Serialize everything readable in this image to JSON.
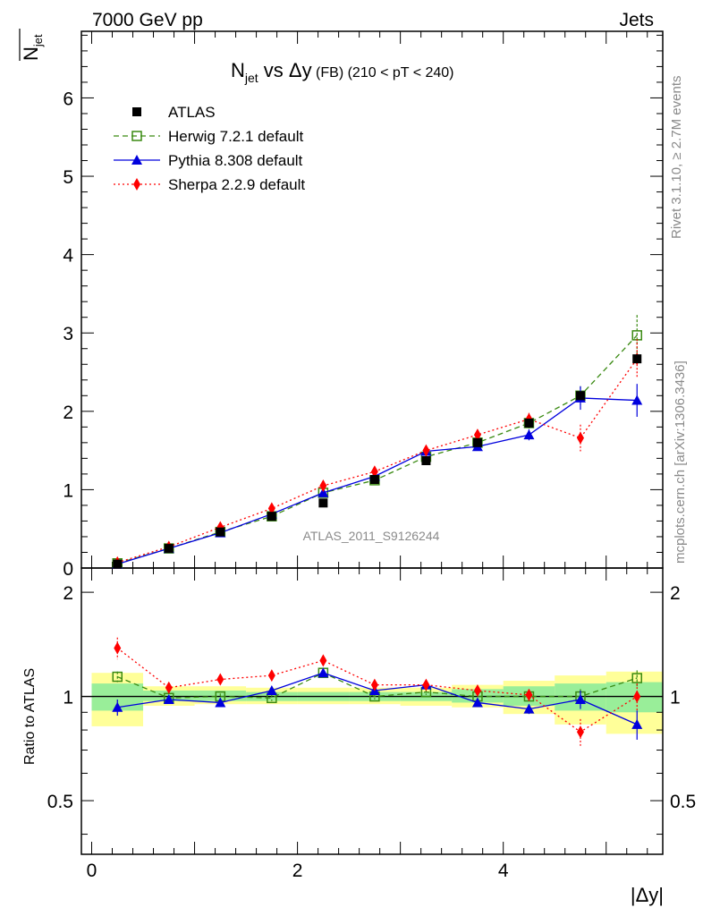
{
  "header": {
    "left": "7000 GeV pp",
    "right": "Jets",
    "side_top": "Rivet 3.1.10, ≥ 2.7M events",
    "side_bottom": "mcplots.cern.ch [arXiv:1306.3436]",
    "watermark": "ATLAS_2011_S9126244"
  },
  "chart_data": {
    "type": "line",
    "title_main": "N",
    "title_sub": "jet",
    "title_vs": " vs Δy",
    "title_fb": " (FB)",
    "title_range": " (210 < pT < 240)",
    "ylabel_main": "N",
    "ylabel_sub": "jet",
    "ratio_ylabel": "Ratio to ATLAS",
    "xlabel": "|Δy|",
    "x": [
      0.25,
      0.75,
      1.25,
      1.75,
      2.25,
      2.75,
      3.25,
      3.75,
      4.25,
      4.75,
      5.3
    ],
    "xlim": [
      -0.1,
      5.55
    ],
    "ylim": [
      0,
      6.85
    ],
    "ratio_ylim": [
      0.35,
      2.35
    ],
    "x_ticks": [
      "0",
      "2",
      "4"
    ],
    "y_ticks": [
      "0",
      "1",
      "2",
      "3",
      "4",
      "5",
      "6"
    ],
    "ratio_ticks": [
      "0.5",
      "1",
      "2"
    ],
    "bands": {
      "x_edges": [
        0,
        0.5,
        1,
        1.5,
        2,
        2.5,
        3,
        3.5,
        4,
        4.5,
        5,
        5.55
      ],
      "yellow_lo": [
        0.82,
        0.94,
        0.95,
        0.95,
        0.95,
        0.95,
        0.94,
        0.93,
        0.89,
        0.83,
        0.78
      ],
      "yellow_hi": [
        1.17,
        1.07,
        1.07,
        1.06,
        1.06,
        1.06,
        1.06,
        1.08,
        1.11,
        1.15,
        1.18
      ],
      "green_lo": [
        0.91,
        0.97,
        0.97,
        0.97,
        0.97,
        0.97,
        0.97,
        0.96,
        0.94,
        0.91,
        0.9
      ],
      "green_hi": [
        1.09,
        1.04,
        1.04,
        1.03,
        1.03,
        1.03,
        1.03,
        1.05,
        1.07,
        1.09,
        1.1
      ]
    },
    "series": [
      {
        "name": "ATLAS",
        "color": "#000000",
        "marker": "square",
        "values": [
          0.05,
          0.25,
          0.46,
          0.66,
          0.83,
          1.13,
          1.37,
          1.6,
          1.85,
          2.2,
          2.67
        ],
        "ratio": [
          1,
          1,
          1,
          1,
          1,
          1,
          1,
          1,
          1,
          1,
          1
        ]
      },
      {
        "name": "Herwig 7.2.1 default",
        "color": "#3a8a12",
        "marker": "open-square",
        "dash": "6,4",
        "values": [
          0.06,
          0.25,
          0.46,
          0.66,
          0.96,
          1.12,
          1.42,
          1.6,
          1.85,
          2.2,
          2.97
        ],
        "ratio": [
          1.14,
          0.99,
          1.0,
          0.99,
          1.17,
          1.0,
          1.03,
          1.0,
          1.0,
          1.0,
          1.13
        ],
        "err": [
          0.01,
          0.01,
          0.01,
          0.02,
          0.02,
          0.03,
          0.03,
          0.05,
          0.07,
          0.12,
          0.26
        ],
        "ratio_err": [
          0.04,
          0.02,
          0.02,
          0.02,
          0.02,
          0.02,
          0.02,
          0.02,
          0.03,
          0.05,
          0.06
        ]
      },
      {
        "name": "Pythia 8.308 default",
        "color": "#0000dd",
        "marker": "triangle",
        "values": [
          0.05,
          0.25,
          0.45,
          0.69,
          0.96,
          1.17,
          1.49,
          1.55,
          1.7,
          2.17,
          2.14
        ],
        "ratio": [
          0.93,
          0.98,
          0.96,
          1.04,
          1.17,
          1.04,
          1.08,
          0.96,
          0.92,
          0.98,
          0.83
        ],
        "err": [
          0.01,
          0.01,
          0.01,
          0.02,
          0.02,
          0.03,
          0.04,
          0.05,
          0.07,
          0.15,
          0.21
        ],
        "ratio_err": [
          0.05,
          0.02,
          0.02,
          0.02,
          0.02,
          0.02,
          0.02,
          0.02,
          0.03,
          0.06,
          0.08
        ]
      },
      {
        "name": "Sherpa 2.2.9 default",
        "color": "#ff0000",
        "marker": "diamond",
        "dot": true,
        "values": [
          0.07,
          0.27,
          0.52,
          0.76,
          1.05,
          1.23,
          1.5,
          1.7,
          1.9,
          1.66,
          2.67
        ],
        "ratio": [
          1.38,
          1.06,
          1.12,
          1.15,
          1.27,
          1.08,
          1.08,
          1.04,
          1.01,
          0.79,
          1.0
        ],
        "err": [
          0.01,
          0.01,
          0.01,
          0.02,
          0.02,
          0.03,
          0.04,
          0.05,
          0.08,
          0.17,
          0.25
        ],
        "ratio_err": [
          0.1,
          0.03,
          0.03,
          0.03,
          0.03,
          0.03,
          0.03,
          0.03,
          0.04,
          0.07,
          0.09
        ]
      }
    ]
  }
}
